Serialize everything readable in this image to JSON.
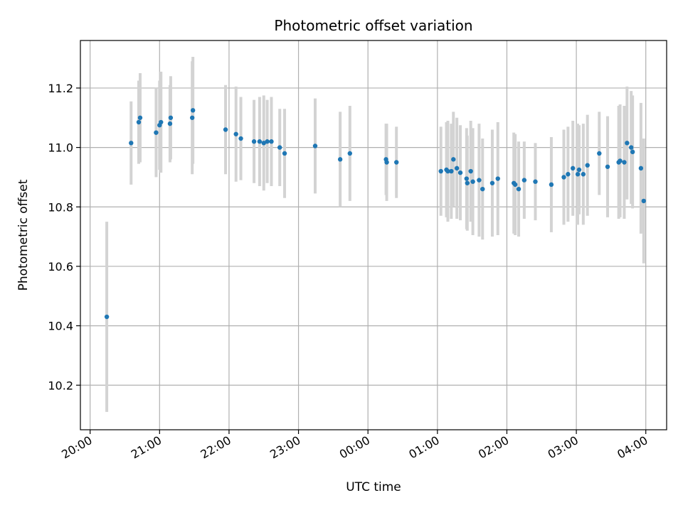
{
  "chart_data": {
    "type": "scatter",
    "title": "Photometric offset variation",
    "xlabel": "UTC time",
    "ylabel": "Photometric offset",
    "x_tick_labels": [
      "20:00",
      "21:00",
      "22:00",
      "23:00",
      "00:00",
      "01:00",
      "02:00",
      "03:00",
      "04:00"
    ],
    "x_tick_hours": [
      0,
      1,
      2,
      3,
      4,
      5,
      6,
      7,
      8
    ],
    "y_ticks": [
      10.2,
      10.4,
      10.6,
      10.8,
      11.0,
      11.2
    ],
    "y_tick_labels": [
      "10.2",
      "10.4",
      "10.6",
      "10.8",
      "11.0",
      "11.2"
    ],
    "xlim_hours_after_20": [
      -0.14,
      8.3
    ],
    "ylim": [
      10.05,
      11.36
    ],
    "grid": true,
    "point_color": "#1f77b4",
    "errorbar_color": "#d3d3d3",
    "x_hours_after_20": [
      0.24,
      0.59,
      0.7,
      0.72,
      0.95,
      1.0,
      1.02,
      1.15,
      1.16,
      1.47,
      1.48,
      1.95,
      2.1,
      2.17,
      2.36,
      2.44,
      2.5,
      2.55,
      2.61,
      2.73,
      2.8,
      3.24,
      3.6,
      3.74,
      4.26,
      4.27,
      4.41,
      5.05,
      5.13,
      5.15,
      5.2,
      5.23,
      5.28,
      5.33,
      5.42,
      5.43,
      5.48,
      5.51,
      5.6,
      5.65,
      5.79,
      5.87,
      6.1,
      6.12,
      6.17,
      6.25,
      6.41,
      6.64,
      6.82,
      6.88,
      6.95,
      7.02,
      7.04,
      7.1,
      7.16,
      7.33,
      7.45,
      7.61,
      7.63,
      7.69,
      7.73,
      7.79,
      7.81,
      7.93,
      7.97
    ],
    "y": [
      10.43,
      11.015,
      11.085,
      11.1,
      11.05,
      11.075,
      11.085,
      11.08,
      11.1,
      11.1,
      11.125,
      11.06,
      11.045,
      11.03,
      11.02,
      11.02,
      11.015,
      11.02,
      11.02,
      11.0,
      10.98,
      11.005,
      10.96,
      10.98,
      10.96,
      10.95,
      10.95,
      10.92,
      10.925,
      10.92,
      10.92,
      10.96,
      10.93,
      10.915,
      10.895,
      10.88,
      10.92,
      10.885,
      10.89,
      10.86,
      10.88,
      10.895,
      10.88,
      10.875,
      10.86,
      10.89,
      10.885,
      10.875,
      10.9,
      10.91,
      10.93,
      10.91,
      10.925,
      10.91,
      10.94,
      10.98,
      10.935,
      10.95,
      10.955,
      10.95,
      11.015,
      11.0,
      10.985,
      10.93,
      10.82
    ],
    "y_err": [
      0.32,
      0.14,
      0.14,
      0.15,
      0.15,
      0.15,
      0.17,
      0.13,
      0.14,
      0.19,
      0.18,
      0.15,
      0.16,
      0.14,
      0.14,
      0.15,
      0.16,
      0.14,
      0.15,
      0.13,
      0.15,
      0.16,
      0.16,
      0.16,
      0.12,
      0.13,
      0.12,
      0.15,
      0.16,
      0.17,
      0.16,
      0.16,
      0.17,
      0.16,
      0.17,
      0.16,
      0.17,
      0.18,
      0.19,
      0.17,
      0.18,
      0.19,
      0.17,
      0.17,
      0.16,
      0.13,
      0.13,
      0.16,
      0.16,
      0.16,
      0.16,
      0.17,
      0.15,
      0.17,
      0.17,
      0.14,
      0.17,
      0.19,
      0.19,
      0.19,
      0.19,
      0.19,
      0.19,
      0.22,
      0.21
    ]
  }
}
